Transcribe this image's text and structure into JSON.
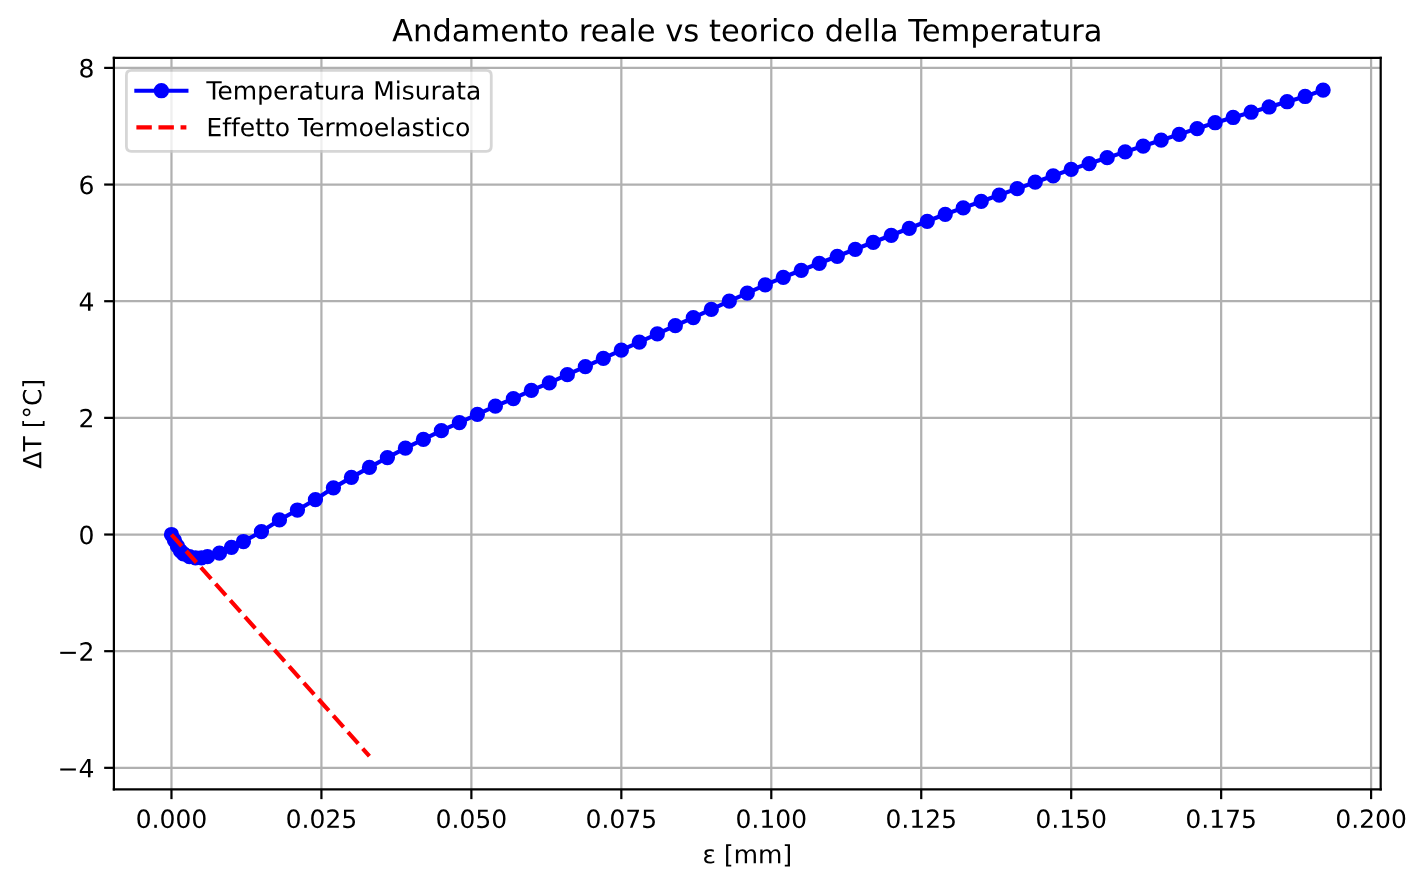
{
  "chart_data": {
    "type": "line",
    "title": "Andamento reale vs teorico della Temperatura",
    "xlabel": "ε [mm]",
    "ylabel": "ΔT [°C]",
    "series": [
      {
        "name": "Temperatura Misurata",
        "color": "#0000ff",
        "marker": "circle",
        "line_style": "solid",
        "x": [
          0,
          0.0005,
          0.001,
          0.0015,
          0.002,
          0.003,
          0.004,
          0.005,
          0.006,
          0.008,
          0.01,
          0.012,
          0.015,
          0.018,
          0.021,
          0.024,
          0.027,
          0.03,
          0.033,
          0.036,
          0.039,
          0.042,
          0.045,
          0.048,
          0.051,
          0.054,
          0.057,
          0.06,
          0.063,
          0.066,
          0.069,
          0.072,
          0.075,
          0.078,
          0.081,
          0.084,
          0.087,
          0.09,
          0.093,
          0.096,
          0.099,
          0.102,
          0.105,
          0.108,
          0.111,
          0.114,
          0.117,
          0.12,
          0.123,
          0.126,
          0.129,
          0.132,
          0.135,
          0.138,
          0.141,
          0.144,
          0.147,
          0.15,
          0.153,
          0.156,
          0.159,
          0.162,
          0.165,
          0.168,
          0.171,
          0.174,
          0.177,
          0.18,
          0.183,
          0.186,
          0.189,
          0.192
        ],
        "values": [
          0,
          -0.1,
          -0.2,
          -0.28,
          -0.33,
          -0.38,
          -0.4,
          -0.4,
          -0.38,
          -0.32,
          -0.22,
          -0.12,
          0.05,
          0.25,
          0.42,
          0.6,
          0.8,
          0.98,
          1.15,
          1.32,
          1.48,
          1.63,
          1.78,
          1.92,
          2.06,
          2.2,
          2.33,
          2.47,
          2.6,
          2.74,
          2.88,
          3.02,
          3.16,
          3.3,
          3.44,
          3.58,
          3.72,
          3.86,
          4.0,
          4.14,
          4.28,
          4.41,
          4.53,
          4.65,
          4.77,
          4.89,
          5.01,
          5.13,
          5.25,
          5.37,
          5.49,
          5.6,
          5.71,
          5.82,
          5.93,
          6.04,
          6.15,
          6.26,
          6.36,
          6.46,
          6.56,
          6.66,
          6.76,
          6.86,
          6.96,
          7.06,
          7.15,
          7.24,
          7.33,
          7.42,
          7.51,
          7.62
        ]
      },
      {
        "name": "Effetto Termoelastico",
        "color": "#ff0000",
        "line_style": "dashed",
        "x": [
          0,
          0.033
        ],
        "values": [
          0,
          -3.8
        ]
      }
    ],
    "xlim": [
      -0.0096,
      0.2016
    ],
    "ylim": [
      -4.37,
      8.17
    ],
    "xticks": [
      {
        "value": 0,
        "label": "0.000"
      },
      {
        "value": 0.025,
        "label": "0.025"
      },
      {
        "value": 0.05,
        "label": "0.050"
      },
      {
        "value": 0.075,
        "label": "0.075"
      },
      {
        "value": 0.1,
        "label": "0.100"
      },
      {
        "value": 0.125,
        "label": "0.125"
      },
      {
        "value": 0.15,
        "label": "0.150"
      },
      {
        "value": 0.175,
        "label": "0.175"
      },
      {
        "value": 0.2,
        "label": "0.200"
      }
    ],
    "yticks": [
      {
        "value": -4,
        "label": "−4"
      },
      {
        "value": -2,
        "label": "−2"
      },
      0,
      2,
      4,
      6,
      8
    ],
    "grid": true,
    "legend": "top left"
  }
}
